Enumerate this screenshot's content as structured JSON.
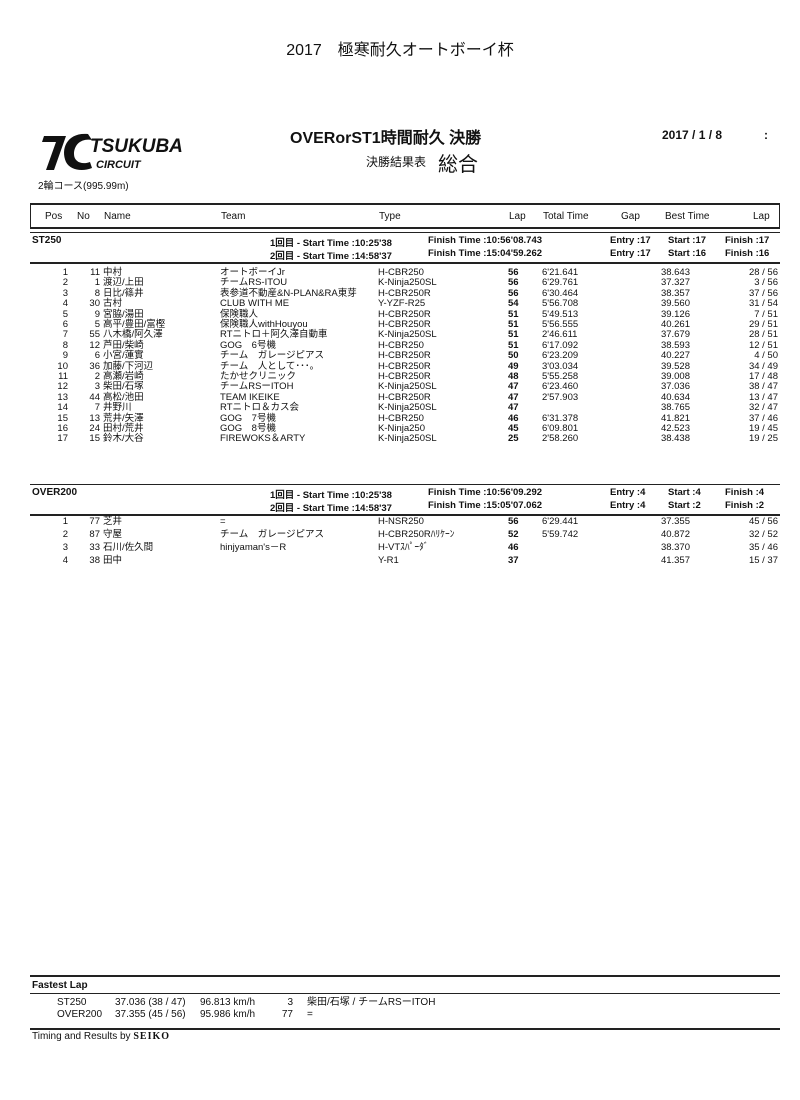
{
  "document_title": "2017　極寒耐久オートボーイ杯",
  "logo": {
    "text": "TSUKUBA CIRCUIT",
    "mark": "TC"
  },
  "course": "2輪コース(995.99m)",
  "race_title": "OVERorST1時間耐久 決勝",
  "subtitle": "決勝結果表",
  "subtitle2": "総合",
  "date": "2017 / 1 / 8",
  "time": ":",
  "columns": {
    "pos": "Pos",
    "no": "No",
    "name": "Name",
    "team": "Team",
    "type": "Type",
    "lap": "Lap",
    "total": "Total Time",
    "gap": "Gap",
    "best": "Best Time",
    "best_lap": "Lap"
  },
  "sections": [
    {
      "name": "ST250",
      "heats": [
        {
          "label": "1回目 - Start Time :10:25'38",
          "finish": "Finish Time :10:56'08.743",
          "entry": "Entry :17",
          "start": "Start :17",
          "finished": "Finish :17"
        },
        {
          "label": "2回目 - Start Time :14:58'37",
          "finish": "Finish Time :15:04'59.262",
          "entry": "Entry :17",
          "start": "Start :16",
          "finished": "Finish :16"
        }
      ],
      "rows": [
        [
          "1",
          "11",
          "中村",
          "オートボーイJr",
          "H-CBR250",
          "56",
          "6'21.641",
          "",
          "38.643",
          "28 / 56"
        ],
        [
          "2",
          "1",
          "渡辺/上田",
          "チームRS-ITOU",
          "K-Ninja250SL",
          "56",
          "6'29.761",
          "",
          "37.327",
          "3 / 56"
        ],
        [
          "3",
          "8",
          "日比/篠井",
          "表参道不動産&N-PLAN&RA東芽",
          "H-CBR250R",
          "56",
          "6'30.464",
          "",
          "38.357",
          "37 / 56"
        ],
        [
          "4",
          "30",
          "古村",
          "CLUB WITH ME",
          "Y-YZF-R25",
          "54",
          "5'56.708",
          "",
          "39.560",
          "31 / 54"
        ],
        [
          "5",
          "9",
          "宮脇/湯田",
          "保険職人",
          "H-CBR250R",
          "51",
          "5'49.513",
          "",
          "39.126",
          "7 / 51"
        ],
        [
          "6",
          "5",
          "高平/豊田/富樫",
          "保険職人withHouyou",
          "H-CBR250R",
          "51",
          "5'56.555",
          "",
          "40.261",
          "29 / 51"
        ],
        [
          "7",
          "55",
          "八木橋/阿久澤",
          "RTニトロ＋阿久澤自動車",
          "K-Ninja250SL",
          "51",
          "2'46.611",
          "",
          "37.679",
          "28 / 51"
        ],
        [
          "8",
          "12",
          "芦田/柴崎",
          "GOG　6号機",
          "H-CBR250",
          "51",
          "6'17.092",
          "",
          "38.593",
          "12 / 51"
        ],
        [
          "9",
          "6",
          "小宮/蓮實",
          "チーム　ガレージピアス",
          "H-CBR250R",
          "50",
          "6'23.209",
          "",
          "40.227",
          "4 / 50"
        ],
        [
          "10",
          "36",
          "加藤/下河辺",
          "チーム　人として･･･。",
          "H-CBR250R",
          "49",
          "3'03.034",
          "",
          "39.528",
          "34 / 49"
        ],
        [
          "11",
          "2",
          "高瀬/岩崎",
          "たかせクリニック",
          "H-CBR250R",
          "48",
          "5'55.258",
          "",
          "39.008",
          "17 / 48"
        ],
        [
          "12",
          "3",
          "柴田/石塚",
          "チームRSーITOH",
          "K-Ninja250SL",
          "47",
          "6'23.460",
          "",
          "37.036",
          "38 / 47"
        ],
        [
          "13",
          "44",
          "高松/池田",
          "TEAM IKEIKE",
          "H-CBR250R",
          "47",
          "2'57.903",
          "",
          "40.634",
          "13 / 47"
        ],
        [
          "14",
          "7",
          "井野川",
          "RTニトロ＆カス会",
          "K-Ninja250SL",
          "47",
          "",
          "",
          "38.765",
          "32 / 47"
        ],
        [
          "15",
          "13",
          "荒井/矢澤",
          "GOG　7号機",
          "H-CBR250",
          "46",
          "6'31.378",
          "",
          "41.821",
          "37 / 46"
        ],
        [
          "16",
          "24",
          "田村/荒井",
          "GOG　8号機",
          "K-Ninja250",
          "45",
          "6'09.801",
          "",
          "42.523",
          "19 / 45"
        ],
        [
          "17",
          "15",
          "鈴木/大谷",
          "FIREWOKS＆ARTY",
          "K-Ninja250SL",
          "25",
          "2'58.260",
          "",
          "38.438",
          "19 / 25"
        ]
      ]
    },
    {
      "name": "OVER200",
      "heats": [
        {
          "label": "1回目 - Start Time :10:25'38",
          "finish": "Finish Time :10:56'09.292",
          "entry": "Entry :4",
          "start": "Start :4",
          "finished": "Finish :4"
        },
        {
          "label": "2回目 - Start Time :14:58'37",
          "finish": "Finish Time :15:05'07.062",
          "entry": "Entry :4",
          "start": "Start :2",
          "finished": "Finish :2"
        }
      ],
      "rows": [
        [
          "1",
          "77",
          "芝井",
          "=",
          "H-NSR250",
          "56",
          "6'29.441",
          "",
          "37.355",
          "45 / 56"
        ],
        [
          "2",
          "87",
          "守屋",
          "チーム　ガレージピアス",
          "H-CBR250Rﾊﾘｹｰﾝ",
          "52",
          "5'59.742",
          "",
          "40.872",
          "32 / 52"
        ],
        [
          "3",
          "33",
          "石川/佐久間",
          "hinjyaman's－R",
          "H-VTｽﾊﾟｰﾀﾞ",
          "46",
          "",
          "",
          "38.370",
          "35 / 46"
        ],
        [
          "4",
          "38",
          "田中",
          "",
          "Y-R1",
          "37",
          "",
          "",
          "41.357",
          "15 / 37"
        ]
      ]
    }
  ],
  "fastest_lap": {
    "title": "Fastest Lap",
    "rows": [
      {
        "cls": "ST250",
        "time": "37.036 (38 / 47)",
        "speed": "96.813 km/h",
        "no": "3",
        "who": "柴田/石塚 / チームRSーITOH"
      },
      {
        "cls": "OVER200",
        "time": "37.355 (45 / 56)",
        "speed": "95.986 km/h",
        "no": "77",
        "who": "="
      }
    ]
  },
  "footer": {
    "text": "Timing and Results by",
    "brand": "SEIKO"
  }
}
